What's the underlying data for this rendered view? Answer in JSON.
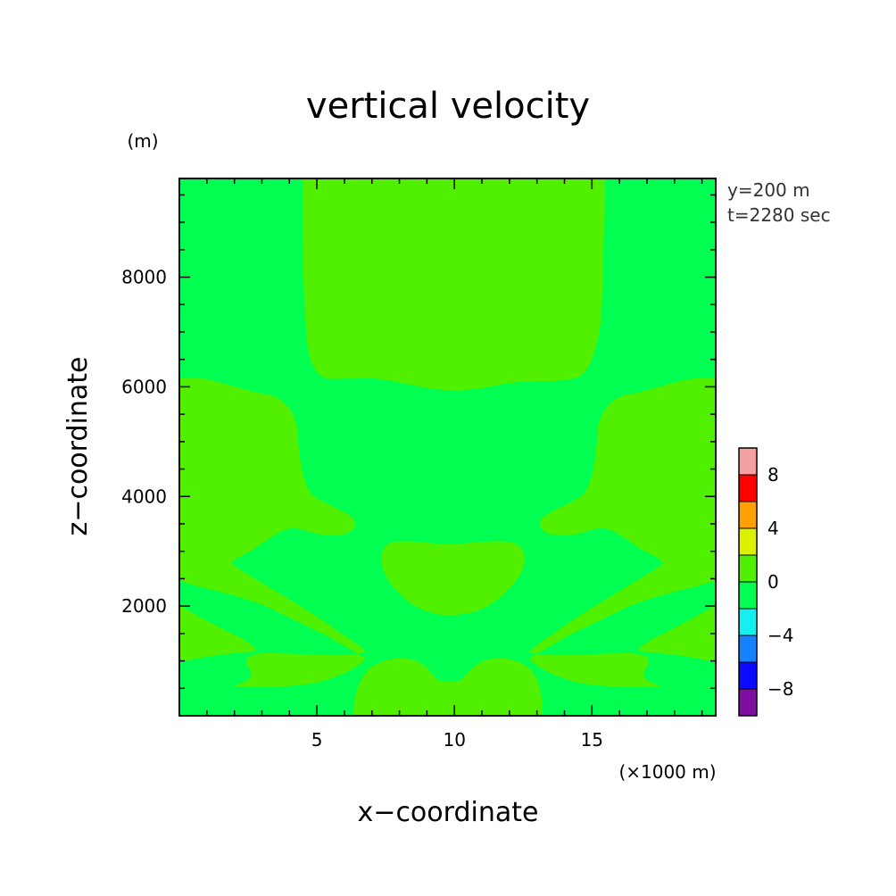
{
  "chart_data": {
    "type": "heatmap",
    "title": "vertical velocity",
    "xlabel": "x−coordinate",
    "ylabel": "z−coordinate",
    "x_unit": "(×1000 m)",
    "y_unit": "(m)",
    "annotations": [
      "y=200 m",
      "t=2280 sec"
    ],
    "xlim": [
      0,
      19.5
    ],
    "ylim": [
      0,
      9800
    ],
    "x_ticks": [
      5,
      10,
      15
    ],
    "x_tick_labels": [
      "5",
      "10",
      "15"
    ],
    "y_ticks": [
      2000,
      4000,
      6000,
      8000
    ],
    "y_tick_labels": [
      "2000",
      "4000",
      "6000",
      "8000"
    ],
    "colorbar": {
      "levels": [
        -10,
        -8,
        -6,
        -4,
        -2,
        0,
        2,
        4,
        6,
        8,
        10
      ],
      "colors": [
        "#7f0fa0",
        "#0a0aff",
        "#1482ff",
        "#14f0f0",
        "#00ff50",
        "#50f000",
        "#dcf000",
        "#ffa000",
        "#ff0000",
        "#f5a0a0"
      ],
      "tick_values": [
        -8,
        -4,
        0,
        4,
        8
      ],
      "tick_labels": [
        "−8",
        "−4",
        "0",
        "4",
        "8"
      ]
    },
    "background_level": "-2 to 0",
    "regions": [
      {
        "name": "upper-column",
        "level": "0 to 2",
        "x": [
          4.5,
          15.7
        ],
        "z": [
          6050,
          9800
        ]
      },
      {
        "name": "left-lobe",
        "level": "0 to 2",
        "x": [
          0,
          6.4
        ],
        "z": [
          1100,
          6300
        ]
      },
      {
        "name": "right-lobe",
        "level": "0 to 2",
        "x": [
          13.2,
          19.5
        ],
        "z": [
          1100,
          6300
        ]
      },
      {
        "name": "central-blob",
        "level": "0 to 2",
        "x": [
          7.4,
          12.6
        ],
        "z": [
          1950,
          3200
        ]
      },
      {
        "name": "bottom-mound",
        "level": "0 to 2",
        "x": [
          6.3,
          13.7
        ],
        "z": [
          0,
          1060
        ]
      }
    ]
  }
}
